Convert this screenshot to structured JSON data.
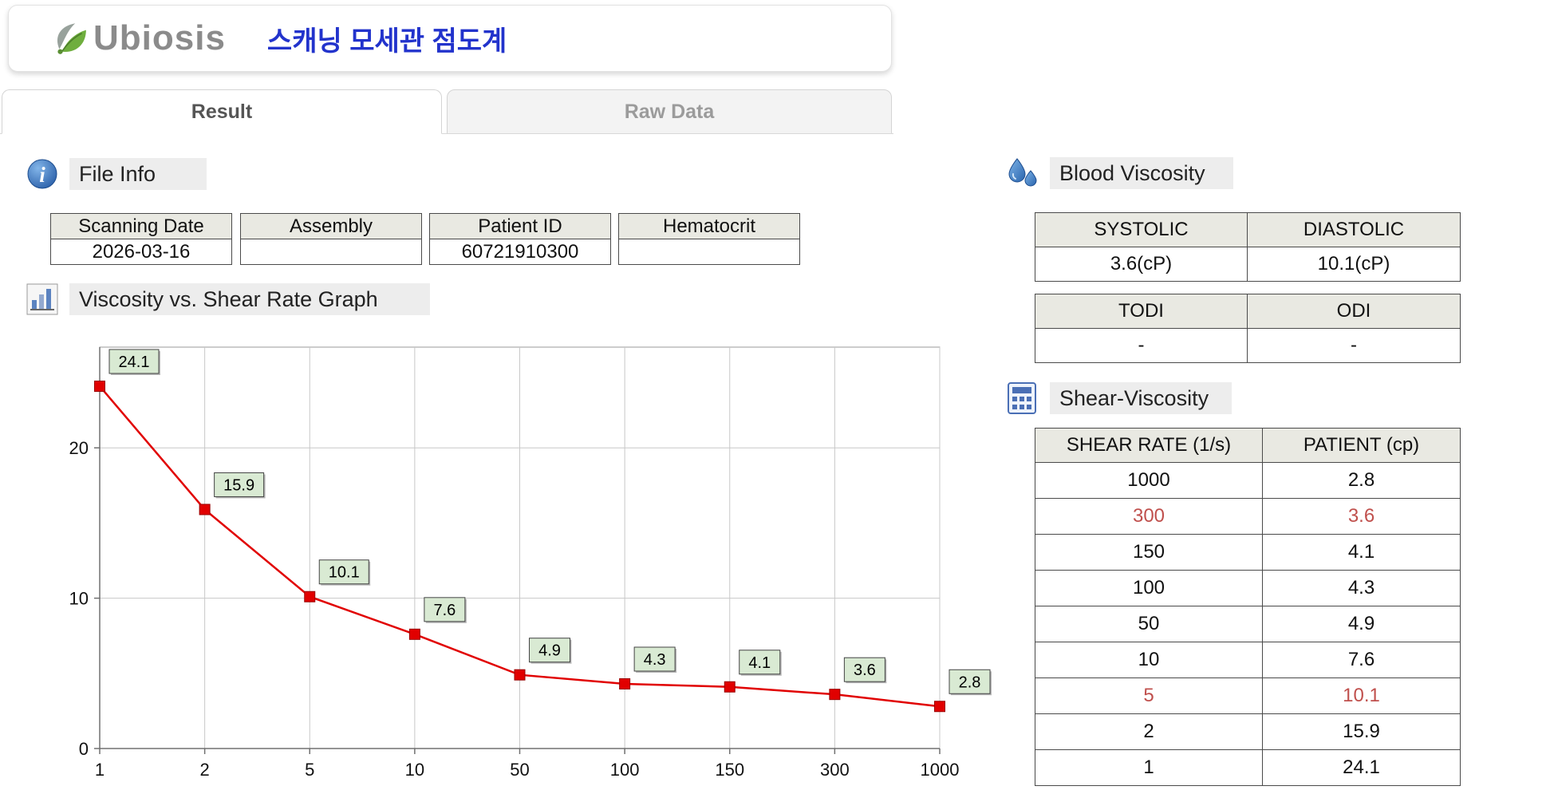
{
  "header": {
    "logo_text": "Ubiosis",
    "title_korean": "스캐닝 모세관 점도계"
  },
  "tabs": [
    {
      "label": "Result",
      "active": true
    },
    {
      "label": "Raw Data",
      "active": false
    }
  ],
  "file_info": {
    "section_title": "File Info",
    "columns": [
      {
        "header": "Scanning Date",
        "value": "2026-03-16"
      },
      {
        "header": "Assembly",
        "value": ""
      },
      {
        "header": "Patient ID",
        "value": "60721910300"
      },
      {
        "header": "Hematocrit",
        "value": ""
      }
    ]
  },
  "graph_section": {
    "section_title": "Viscosity vs. Shear Rate Graph"
  },
  "chart_data": {
    "type": "line",
    "title": "Viscosity vs. Shear Rate Graph",
    "xlabel": "",
    "ylabel": "",
    "x_axis_scale": "category",
    "x_categories": [
      "1",
      "2",
      "5",
      "10",
      "50",
      "100",
      "150",
      "300",
      "1000"
    ],
    "values": [
      24.1,
      15.9,
      10.1,
      7.6,
      4.9,
      4.3,
      4.1,
      3.6,
      2.8
    ],
    "point_labels": [
      "24.1",
      "15.9",
      "10.1",
      "7.6",
      "4.9",
      "4.3",
      "4.1",
      "3.6",
      "2.8"
    ],
    "y_ticks": [
      0,
      10,
      20
    ],
    "y_max": 26.7,
    "grid": true,
    "legend": "none",
    "line_color": "#e10000",
    "marker": "square",
    "marker_color": "#e10000",
    "label_box_fill": "#d9ead3"
  },
  "blood_viscosity": {
    "section_title": "Blood Viscosity",
    "table1": {
      "headers": [
        "SYSTOLIC",
        "DIASTOLIC"
      ],
      "values": [
        "3.6(cP)",
        "10.1(cP)"
      ]
    },
    "table2": {
      "headers": [
        "TODI",
        "ODI"
      ],
      "values": [
        "-",
        "-"
      ]
    }
  },
  "shear_viscosity": {
    "section_title": "Shear-Viscosity",
    "headers": [
      "SHEAR RATE (1/s)",
      "PATIENT (cp)"
    ],
    "highlight_color": "#c0504d",
    "rows": [
      {
        "shear_rate": "1000",
        "patient": "2.8",
        "highlight": false
      },
      {
        "shear_rate": "300",
        "patient": "3.6",
        "highlight": true
      },
      {
        "shear_rate": "150",
        "patient": "4.1",
        "highlight": false
      },
      {
        "shear_rate": "100",
        "patient": "4.3",
        "highlight": false
      },
      {
        "shear_rate": "50",
        "patient": "4.9",
        "highlight": false
      },
      {
        "shear_rate": "10",
        "patient": "7.6",
        "highlight": false
      },
      {
        "shear_rate": "5",
        "patient": "10.1",
        "highlight": true
      },
      {
        "shear_rate": "2",
        "patient": "15.9",
        "highlight": false
      },
      {
        "shear_rate": "1",
        "patient": "24.1",
        "highlight": false
      }
    ]
  }
}
